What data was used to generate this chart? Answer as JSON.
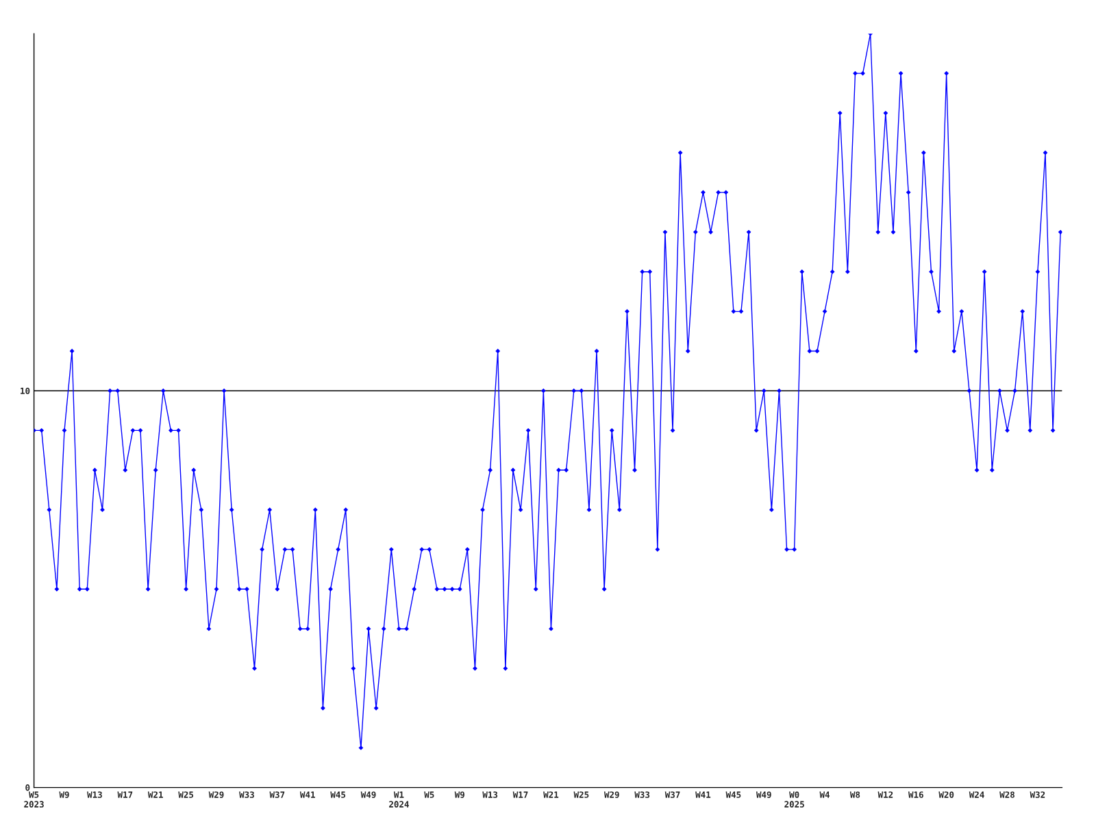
{
  "chart_data": {
    "type": "line",
    "categories": [
      "W5\n2023",
      null,
      null,
      null,
      "W9",
      null,
      null,
      null,
      "W13",
      null,
      null,
      null,
      "W17",
      null,
      null,
      null,
      "W21",
      null,
      null,
      null,
      "W25",
      null,
      null,
      null,
      "W29",
      null,
      null,
      null,
      "W33",
      null,
      null,
      null,
      "W37",
      null,
      null,
      null,
      "W41",
      null,
      null,
      null,
      "W45",
      null,
      null,
      null,
      "W49",
      null,
      null,
      null,
      "W1\n2024",
      null,
      null,
      null,
      "W5",
      null,
      null,
      null,
      "W9",
      null,
      null,
      null,
      "W13",
      null,
      null,
      null,
      "W17",
      null,
      null,
      null,
      "W21",
      null,
      null,
      null,
      "W25",
      null,
      null,
      null,
      "W29",
      null,
      null,
      null,
      "W33",
      null,
      null,
      null,
      "W37",
      null,
      null,
      null,
      "W41",
      null,
      null,
      null,
      "W45",
      null,
      null,
      null,
      "W49",
      null,
      null,
      null,
      "W0\n2025",
      null,
      null,
      null,
      "W4",
      null,
      null,
      null,
      "W8",
      null,
      null,
      null,
      "W12",
      null,
      null,
      null,
      "W16",
      null,
      null,
      null,
      "W20",
      null,
      null,
      null,
      "W24",
      null,
      null,
      null,
      "W28",
      null,
      null,
      null,
      "W32",
      null,
      null,
      null
    ],
    "series": [
      {
        "color": "#0000ff",
        "values": [
          9,
          9,
          7,
          5,
          9,
          11,
          5,
          5,
          8,
          7,
          10,
          10,
          8,
          9,
          9,
          5,
          8,
          10,
          9,
          9,
          5,
          8,
          7,
          4,
          5,
          10,
          7,
          5,
          5,
          3,
          6,
          7,
          5,
          6,
          6,
          4,
          4,
          7,
          2,
          5,
          6,
          7,
          3,
          1,
          4,
          2,
          4,
          6,
          4,
          4,
          5,
          6,
          6,
          5,
          5,
          5,
          5,
          6,
          3,
          7,
          8,
          11,
          3,
          8,
          7,
          9,
          5,
          10,
          4,
          8,
          8,
          10,
          10,
          7,
          11,
          5,
          9,
          7,
          12,
          8,
          13,
          13,
          6,
          14,
          9,
          16,
          11,
          14,
          15,
          14,
          15,
          15,
          12,
          12,
          14,
          9,
          10,
          7,
          10,
          6,
          6,
          13,
          11,
          11,
          12,
          13,
          17,
          13,
          18,
          18,
          19,
          14,
          17,
          14,
          18,
          15,
          11,
          16,
          13,
          12,
          18,
          11,
          12,
          10,
          8,
          13,
          8,
          10,
          9,
          10,
          12,
          9,
          13,
          16,
          9,
          14
        ]
      }
    ],
    "ylim": [
      0,
      19
    ],
    "yticks": [
      0,
      10
    ],
    "grid": "y",
    "marker": "diamond",
    "line_style": "solid"
  }
}
